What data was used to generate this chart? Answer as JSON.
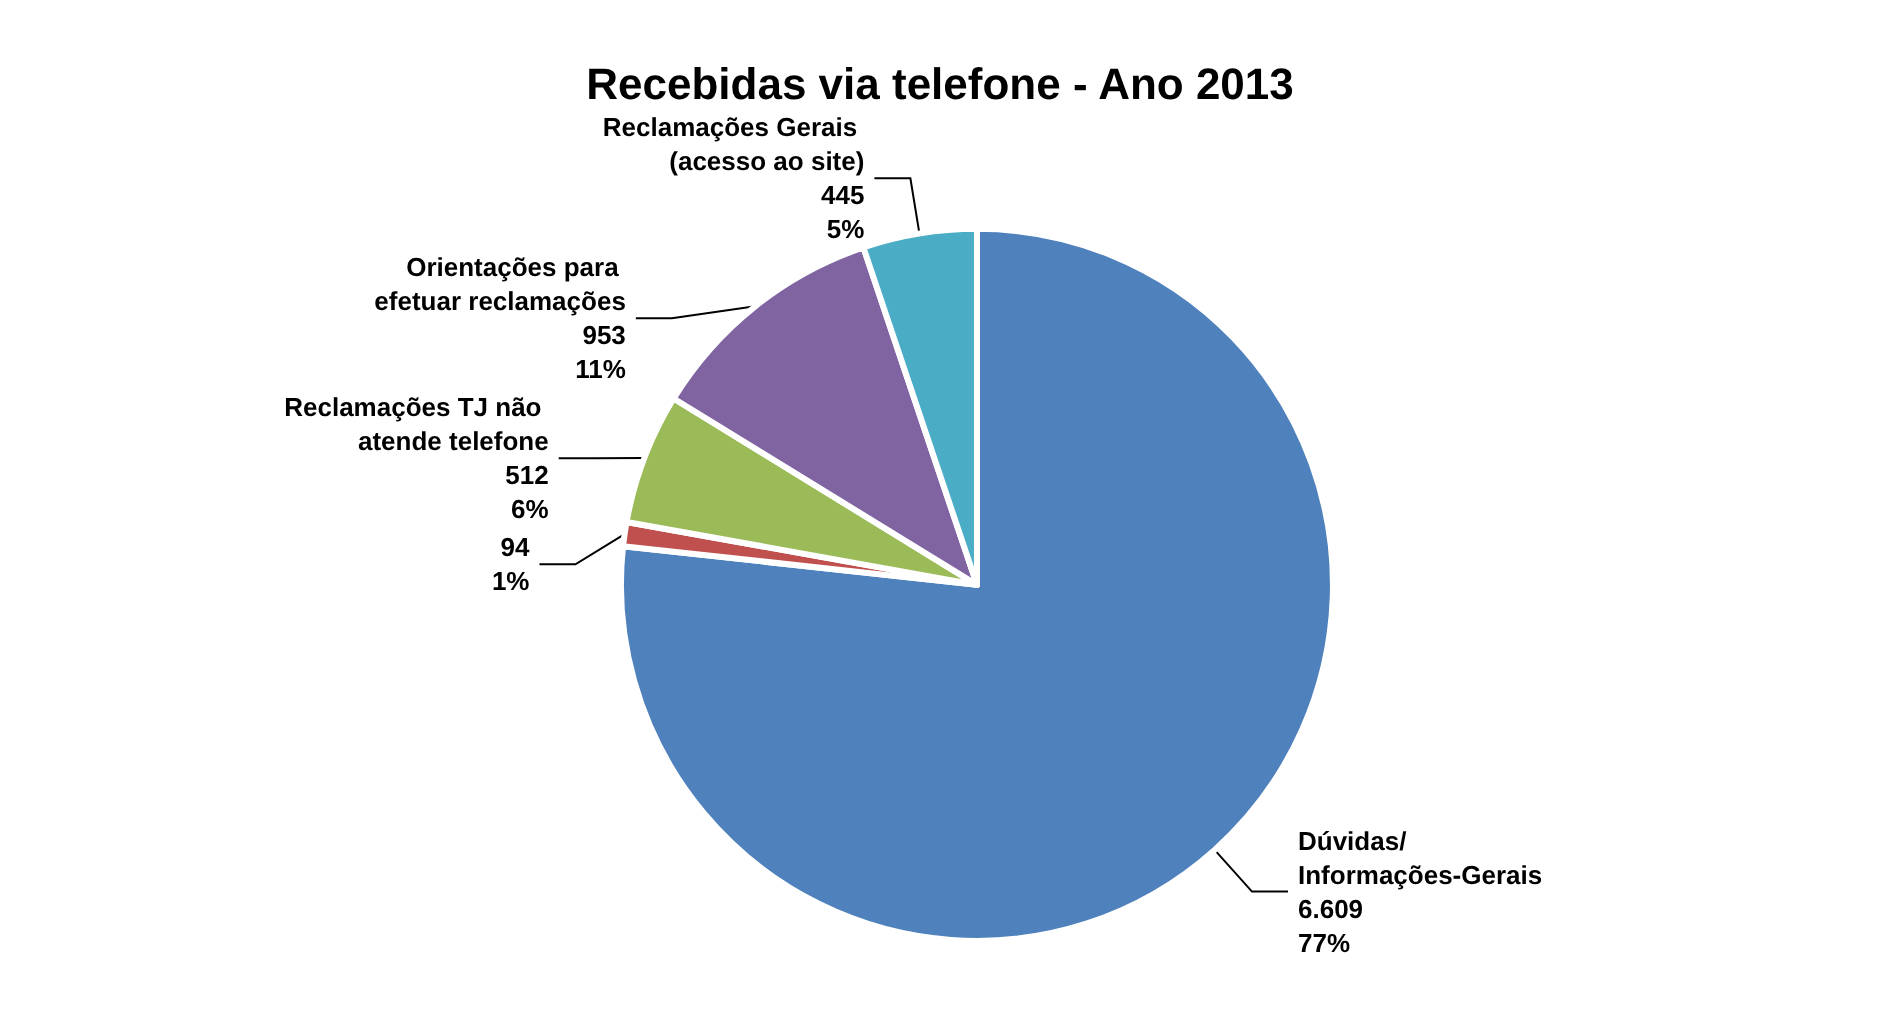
{
  "chart_data": {
    "type": "pie",
    "title": "Recebidas via telefone - Ano 2013",
    "categories": [
      "Dúvidas/ Informações-Gerais",
      null,
      "Reclamações TJ não atende telefone",
      "Orientações para efetuar reclamações",
      "Reclamações Gerais (acesso ao site)"
    ],
    "values": [
      6609,
      94,
      512,
      953,
      445
    ],
    "value_labels": [
      "6.609\n77%",
      "94\n1%",
      "512\n6%",
      "953\n11%",
      "445\n5%"
    ],
    "colors": [
      "#4f81bd",
      "#c0504d",
      "#9bbb59",
      "#8064a2",
      "#4bacc6"
    ],
    "legend": false
  }
}
